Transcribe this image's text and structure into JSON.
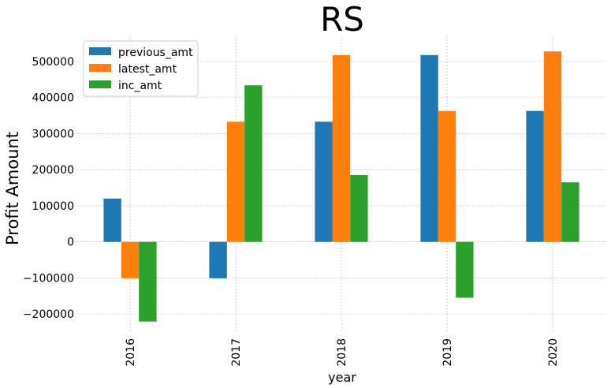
{
  "chart_data": {
    "type": "bar",
    "title": "RS",
    "xlabel": "year",
    "ylabel": "Profit Amount",
    "categories": [
      "2016",
      "2017",
      "2018",
      "2019",
      "2020"
    ],
    "series": [
      {
        "name": "previous_amt",
        "color": "#1f77b4",
        "values": [
          120000,
          -101000,
          333000,
          518000,
          363000
        ]
      },
      {
        "name": "latest_amt",
        "color": "#ff7f0e",
        "values": [
          -101000,
          333000,
          518000,
          363000,
          528000
        ]
      },
      {
        "name": "inc_amt",
        "color": "#2ca02c",
        "values": [
          -221000,
          434000,
          185000,
          -155000,
          165000
        ]
      }
    ],
    "yticks": [
      -200000,
      -100000,
      0,
      100000,
      200000,
      300000,
      400000,
      500000
    ],
    "ytick_labels": [
      "−200000",
      "−100000",
      "0",
      "100000",
      "200000",
      "300000",
      "400000",
      "500000"
    ],
    "ylim": [
      -250000,
      570000
    ],
    "grid": true,
    "legend_position": "top-left"
  }
}
